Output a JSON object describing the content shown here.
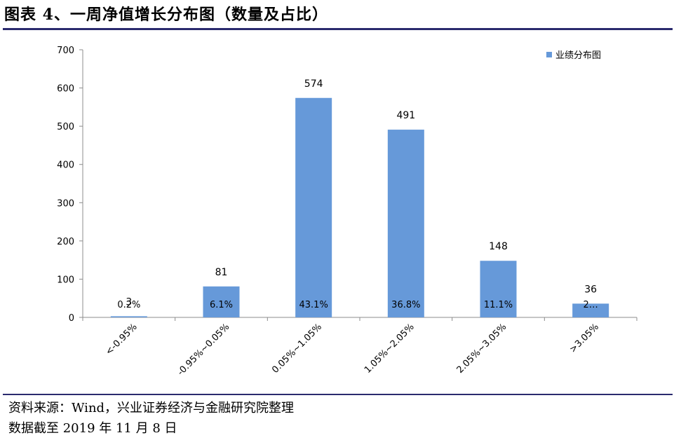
{
  "header": {
    "title": "图表 4、一周净值增长分布图（数量及占比）"
  },
  "footer": {
    "source": "资料来源：Wind，兴业证券经济与金融研究院整理",
    "date_note": "数据截至 2019 年 11 月 8 日"
  },
  "chart_data": {
    "type": "bar",
    "categories": [
      "<-0.95%",
      "-0.95%~0.05%",
      "0.05%~1.05%",
      "1.05%~2.05%",
      "2.05%~3.05%",
      ">3.05%"
    ],
    "series": [
      {
        "name": "业绩分布图",
        "values": [
          3,
          81,
          574,
          491,
          148,
          36
        ],
        "shares": [
          "0.2%",
          "6.1%",
          "43.1%",
          "36.8%",
          "11.1%",
          "2…"
        ]
      }
    ],
    "ylim": [
      0,
      700
    ],
    "yticks": [
      0,
      100,
      200,
      300,
      400,
      500,
      600,
      700
    ],
    "grid": false,
    "legend": "top-right",
    "bar_color": "#6699D9"
  }
}
